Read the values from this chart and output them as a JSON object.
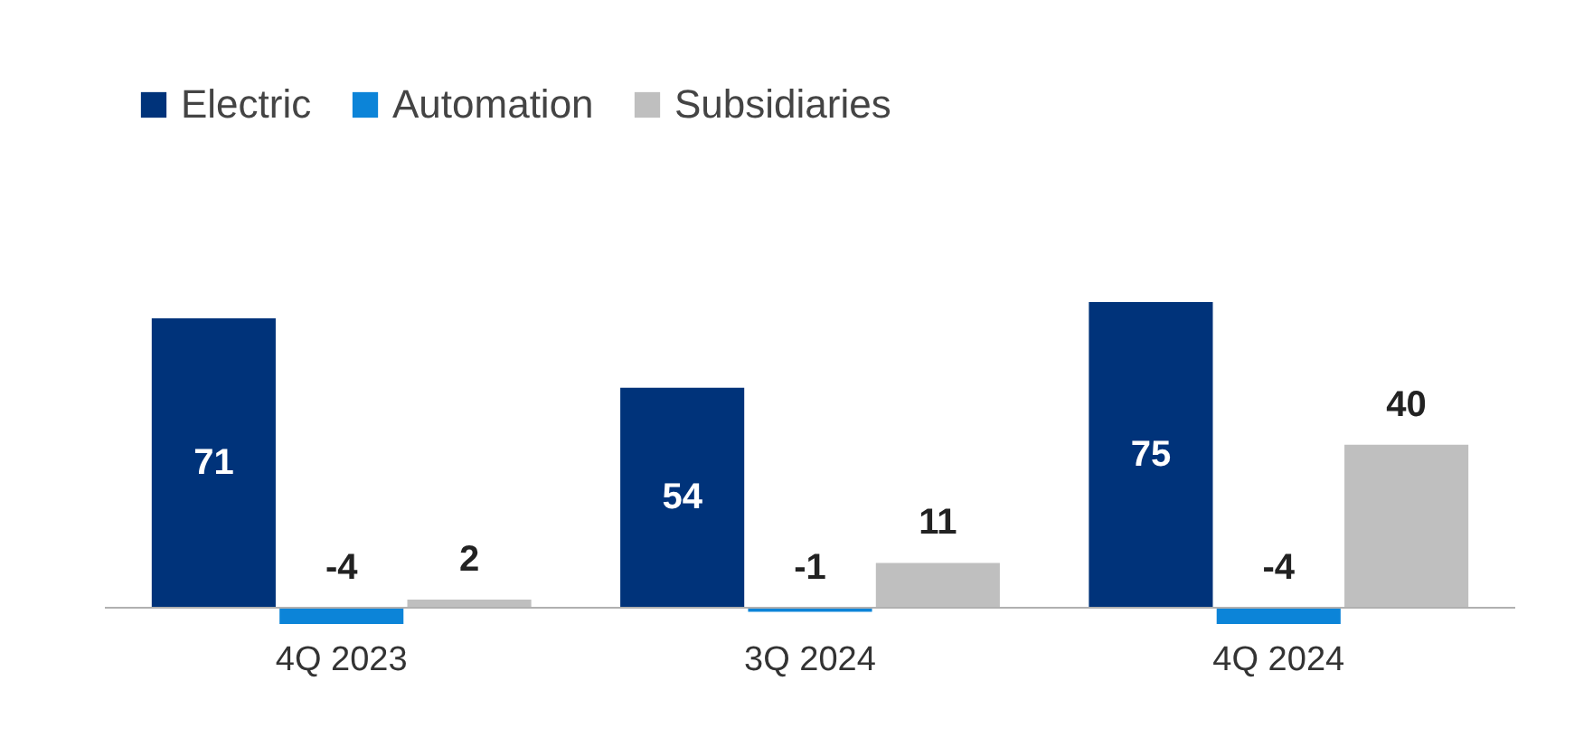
{
  "chart_data": {
    "type": "bar",
    "categories": [
      "4Q 2023",
      "3Q 2024",
      "4Q 2024"
    ],
    "series": [
      {
        "name": "Electric",
        "color": "#00337a",
        "values": [
          71,
          54,
          75
        ]
      },
      {
        "name": "Automation",
        "color": "#0c84d8",
        "values": [
          -4,
          -1,
          -4
        ]
      },
      {
        "name": "Subsidiaries",
        "color": "#bfbfbf",
        "values": [
          2,
          11,
          40
        ]
      }
    ],
    "data_labels": true,
    "legend": "top left",
    "grid": false
  }
}
